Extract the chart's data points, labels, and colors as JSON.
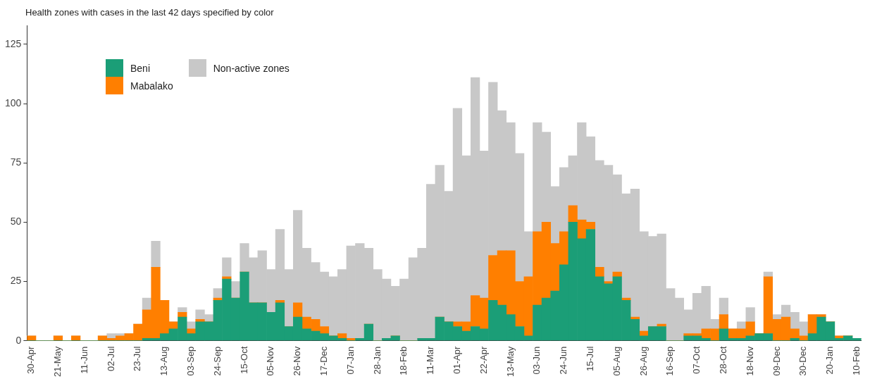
{
  "chart_data": {
    "type": "bar",
    "stacked": true,
    "title": "Health zones with cases in the last 42 days specified by color",
    "categories": [
      "30-Apr",
      null,
      null,
      "21-May",
      null,
      null,
      "11-Jun",
      null,
      null,
      "02-Jul",
      null,
      null,
      "23-Jul",
      null,
      null,
      "13-Aug",
      null,
      null,
      "03-Sep",
      null,
      null,
      "24-Sep",
      null,
      null,
      "15-Oct",
      null,
      null,
      "05-Nov",
      null,
      null,
      "26-Nov",
      null,
      null,
      "17-Dec",
      null,
      null,
      "07-Jan",
      null,
      null,
      "28-Jan",
      null,
      null,
      "18-Feb",
      null,
      null,
      "11-Mar",
      null,
      null,
      "01-Apr",
      null,
      null,
      "22-Apr",
      null,
      null,
      "13-May",
      null,
      null,
      "03-Jun",
      null,
      null,
      "24-Jun",
      null,
      null,
      "15-Jul",
      null,
      null,
      "05-Aug",
      null,
      null,
      "26-Aug",
      null,
      null,
      "16-Sep",
      null,
      null,
      "07-Oct",
      null,
      null,
      "28-Oct",
      null,
      null,
      "18-Nov",
      null,
      null,
      "09-Dec",
      null,
      null,
      "30-Dec",
      null,
      null,
      "20-Jan",
      null,
      null,
      "10-Feb"
    ],
    "series": [
      {
        "name": "Beni",
        "color": "#1b9e77",
        "values": [
          0,
          0,
          0,
          0,
          0,
          0,
          0,
          0,
          0,
          0,
          0,
          0,
          0,
          1,
          1,
          3,
          5,
          10,
          3,
          8,
          8,
          17,
          26,
          18,
          29,
          16,
          16,
          12,
          16,
          6,
          10,
          5,
          4,
          3,
          2,
          1,
          0,
          1,
          7,
          0,
          1,
          2,
          0,
          0,
          1,
          1,
          10,
          8,
          6,
          4,
          6,
          5,
          17,
          15,
          11,
          6,
          2,
          15,
          18,
          21,
          32,
          50,
          43,
          47,
          27,
          24,
          27,
          17,
          9,
          2,
          6,
          6,
          0,
          0,
          2,
          2,
          1,
          0,
          5,
          1,
          1,
          2,
          3,
          3,
          0,
          0,
          1,
          0,
          3,
          10,
          8,
          1,
          2,
          1
        ]
      },
      {
        "name": "Mabalako",
        "color": "#ff7f00",
        "values": [
          2,
          0,
          0,
          2,
          0,
          2,
          0,
          0,
          2,
          1,
          2,
          3,
          7,
          12,
          30,
          14,
          3,
          2,
          2,
          1,
          0,
          1,
          1,
          0,
          0,
          0,
          0,
          0,
          1,
          0,
          6,
          5,
          5,
          3,
          0,
          2,
          1,
          0,
          0,
          0,
          0,
          0,
          0,
          0,
          0,
          0,
          0,
          0,
          2,
          4,
          13,
          13,
          19,
          23,
          27,
          19,
          25,
          31,
          32,
          20,
          14,
          7,
          8,
          3,
          4,
          1,
          2,
          1,
          1,
          2,
          0,
          1,
          0,
          0,
          1,
          1,
          4,
          5,
          6,
          4,
          4,
          6,
          0,
          24,
          9,
          10,
          4,
          2,
          8,
          1,
          0,
          1,
          0,
          0
        ]
      },
      {
        "name": "Non-active zones",
        "color": "#c8c8c8",
        "values": [
          0,
          0,
          0,
          0,
          0,
          0,
          0,
          0,
          0,
          2,
          1,
          0,
          0,
          5,
          11,
          0,
          0,
          2,
          3,
          4,
          3,
          4,
          8,
          7,
          12,
          19,
          22,
          18,
          30,
          24,
          39,
          29,
          24,
          23,
          25,
          27,
          39,
          40,
          32,
          30,
          25,
          21,
          26,
          35,
          38,
          65,
          64,
          55,
          90,
          70,
          92,
          62,
          73,
          59,
          54,
          54,
          19,
          46,
          38,
          24,
          27,
          21,
          41,
          36,
          45,
          49,
          41,
          44,
          54,
          42,
          38,
          38,
          22,
          18,
          10,
          17,
          18,
          4,
          7,
          0,
          3,
          6,
          0,
          2,
          2,
          5,
          7,
          6,
          0,
          0,
          0,
          0,
          0,
          0
        ]
      }
    ],
    "ylim": [
      0,
      133
    ],
    "yticks": [
      0,
      25,
      50,
      75,
      100,
      125
    ],
    "grid": false,
    "legend": "top left"
  }
}
